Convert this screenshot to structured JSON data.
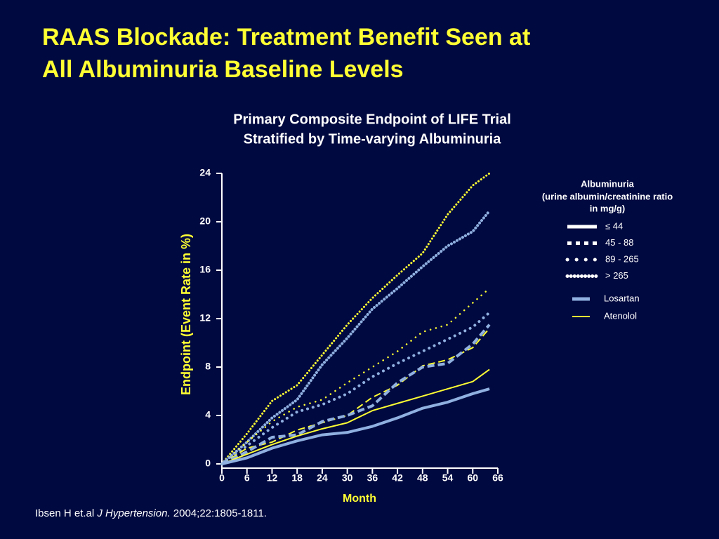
{
  "header": {
    "title": [
      "RAAS Blockade: Treatment Benefit Seen at",
      "All Albuminuria Baseline Levels"
    ]
  },
  "chart_data": {
    "type": "line",
    "title": [
      "Primary Composite Endpoint of LIFE Trial",
      "Stratified by Time-varying Albuminuria"
    ],
    "x_label": "Month",
    "y_label": "Endpoint (Event Rate in %)",
    "xlim": [
      0,
      66
    ],
    "xticks": [
      0,
      6,
      12,
      18,
      24,
      30,
      36,
      42,
      48,
      54,
      60,
      66
    ],
    "ylim": [
      0,
      24
    ],
    "yticks": [
      0,
      4,
      8,
      12,
      16,
      20,
      24
    ],
    "x": [
      0,
      6,
      12,
      18,
      24,
      30,
      36,
      42,
      48,
      54,
      60,
      64
    ],
    "legend_title": [
      "Albuminuria",
      "(urine albumin/creatinine ratio",
      "in mg/g)"
    ],
    "legend_styles": [
      {
        "label": "≤ 44",
        "style": "solid"
      },
      {
        "label": "45 - 88",
        "style": "dash"
      },
      {
        "label": "89 - 265",
        "style": "dot"
      },
      {
        "label": "> 265",
        "style": "fine-dot"
      }
    ],
    "legend_colors": [
      {
        "label": "Losartan",
        "color": "#8fb0e0"
      },
      {
        "label": "Atenolol",
        "color": "#ffff33"
      }
    ],
    "series": [
      {
        "style": "fine-dot",
        "color": "#ffff33",
        "values": [
          0,
          2.5,
          5.2,
          6.5,
          9.0,
          11.5,
          13.7,
          15.6,
          17.4,
          20.6,
          23.0,
          24.0
        ]
      },
      {
        "style": "fine-dot",
        "color": "#8fb0e0",
        "values": [
          0,
          1.8,
          3.8,
          5.3,
          8.2,
          10.4,
          12.8,
          14.5,
          16.3,
          18.0,
          19.2,
          20.9
        ]
      },
      {
        "style": "dot",
        "color": "#ffff33",
        "values": [
          0,
          1.8,
          3.5,
          4.7,
          5.3,
          6.7,
          8.0,
          9.3,
          10.9,
          11.5,
          13.3,
          14.5
        ]
      },
      {
        "style": "dot",
        "color": "#8fb0e0",
        "values": [
          0,
          1.5,
          3.0,
          4.3,
          4.9,
          5.8,
          7.2,
          8.3,
          9.3,
          10.3,
          11.3,
          12.5
        ]
      },
      {
        "style": "dash",
        "color": "#ffff33",
        "values": [
          0,
          1.3,
          1.8,
          2.8,
          3.4,
          4.0,
          5.5,
          6.5,
          8.1,
          8.6,
          9.6,
          11.2
        ]
      },
      {
        "style": "dash",
        "color": "#8fb0e0",
        "values": [
          0,
          1.0,
          2.2,
          2.4,
          3.5,
          4.0,
          4.8,
          6.7,
          8.0,
          8.3,
          9.9,
          11.5
        ]
      },
      {
        "style": "solid",
        "color": "#ffff33",
        "values": [
          0,
          0.8,
          1.6,
          2.3,
          2.9,
          3.4,
          4.4,
          5.0,
          5.6,
          6.2,
          6.8,
          7.8
        ]
      },
      {
        "style": "solid",
        "color": "#8fb0e0",
        "values": [
          0,
          0.5,
          1.3,
          1.9,
          2.4,
          2.6,
          3.1,
          3.8,
          4.6,
          5.1,
          5.8,
          6.2
        ]
      }
    ]
  },
  "citation": [
    "Ibsen H et.al ",
    "J Hypertension.",
    " 2004;22:1805-1811."
  ]
}
